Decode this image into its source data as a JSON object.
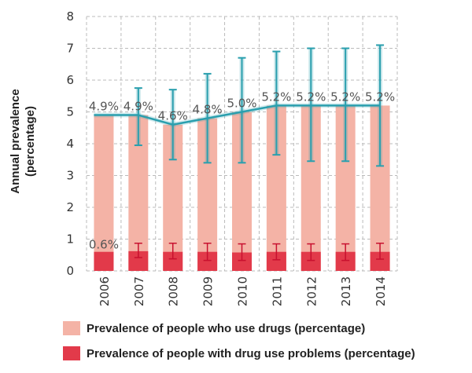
{
  "chart_data": {
    "type": "bar",
    "ylabel_line1": "Annual prevalence",
    "ylabel_line2": "(percentage)",
    "ylim": [
      0,
      8
    ],
    "yticks": [
      "0",
      "1",
      "2",
      "3",
      "4",
      "5",
      "6",
      "7",
      "8"
    ],
    "grid": true,
    "legend_position": "bottom",
    "categories": [
      "2006",
      "2007",
      "2008",
      "2009",
      "2010",
      "2011",
      "2012",
      "2013",
      "2014"
    ],
    "series": [
      {
        "name": "Prevalence of people who use drugs (percentage)",
        "color": "#f4b3a6",
        "values": [
          4.9,
          4.9,
          4.6,
          4.8,
          5.0,
          5.2,
          5.2,
          5.2,
          5.2
        ],
        "labels": [
          "4.9%",
          "4.9%",
          "4.6%",
          "4.8%",
          "5.0%",
          "5.2%",
          "5.2%",
          "5.2%",
          "5.2%"
        ],
        "error_low": [
          null,
          3.95,
          3.5,
          3.4,
          3.4,
          3.65,
          3.45,
          3.45,
          3.3
        ],
        "error_high": [
          null,
          5.75,
          5.7,
          6.2,
          6.7,
          6.9,
          7.0,
          7.0,
          7.1
        ],
        "line_color": "#2a9fae"
      },
      {
        "name": "Prevalence of people with drug use problems (percentage)",
        "color": "#e23a4a",
        "values": [
          0.6,
          0.62,
          0.6,
          0.6,
          0.58,
          0.6,
          0.6,
          0.6,
          0.6
        ],
        "labels": [
          "0.6%",
          "",
          "",
          "",
          "",
          "",
          "",
          "",
          ""
        ],
        "error_low": [
          null,
          0.42,
          0.38,
          0.33,
          0.33,
          0.35,
          0.33,
          0.33,
          0.37
        ],
        "error_high": [
          null,
          0.87,
          0.87,
          0.87,
          0.85,
          0.85,
          0.85,
          0.85,
          0.87
        ],
        "error_color": "#c8102e"
      }
    ]
  }
}
